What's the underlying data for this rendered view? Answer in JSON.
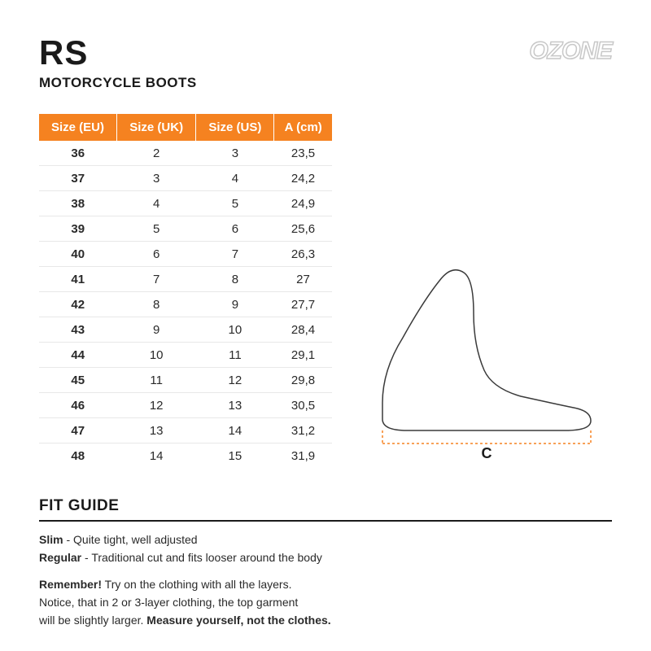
{
  "header": {
    "product_code": "RS",
    "product_type": "MOTORCYCLE BOOTS",
    "brand": "OZONE"
  },
  "table": {
    "columns": [
      "Size (EU)",
      "Size (UK)",
      "Size (US)",
      "A (cm)"
    ],
    "rows": [
      [
        "36",
        "2",
        "3",
        "23,5"
      ],
      [
        "37",
        "3",
        "4",
        "24,2"
      ],
      [
        "38",
        "4",
        "5",
        "24,9"
      ],
      [
        "39",
        "5",
        "6",
        "25,6"
      ],
      [
        "40",
        "6",
        "7",
        "26,3"
      ],
      [
        "41",
        "7",
        "8",
        "27"
      ],
      [
        "42",
        "8",
        "9",
        "27,7"
      ],
      [
        "43",
        "9",
        "10",
        "28,4"
      ],
      [
        "44",
        "10",
        "11",
        "29,1"
      ],
      [
        "45",
        "11",
        "12",
        "29,8"
      ],
      [
        "46",
        "12",
        "13",
        "30,5"
      ],
      [
        "47",
        "13",
        "14",
        "31,2"
      ],
      [
        "48",
        "14",
        "15",
        "31,9"
      ]
    ],
    "header_bg": "#f58220",
    "header_fg": "#ffffff",
    "row_border": "#e8e8e8",
    "cell_fontsize": 15,
    "col_widths_pct": [
      25,
      25,
      25,
      25
    ]
  },
  "diagram": {
    "label": "C",
    "outline_color": "#3a3a3a",
    "outline_width": 1.5,
    "bracket_color": "#f58220",
    "bracket_dash": "3,3",
    "label_fontsize": 18,
    "label_fontweight": 700
  },
  "fit_guide": {
    "title": "FIT GUIDE",
    "lines": [
      {
        "term": "Slim",
        "desc": " - Quite tight, well adjusted"
      },
      {
        "term": "Regular",
        "desc": " -  Traditional cut and fits looser around the body"
      }
    ],
    "remember_label": "Remember!",
    "remember_body": " Try on the clothing with all the layers.\nNotice, that in 2 or 3-layer clothing, the top garment\nwill be slightly larger. ",
    "remember_strong_tail": "Measure yourself, not the clothes."
  },
  "colors": {
    "accent": "#f58220",
    "text": "#1a1a1a",
    "muted_text": "#2a2a2a",
    "logo_stroke": "#c8c8c8",
    "background": "#ffffff"
  }
}
